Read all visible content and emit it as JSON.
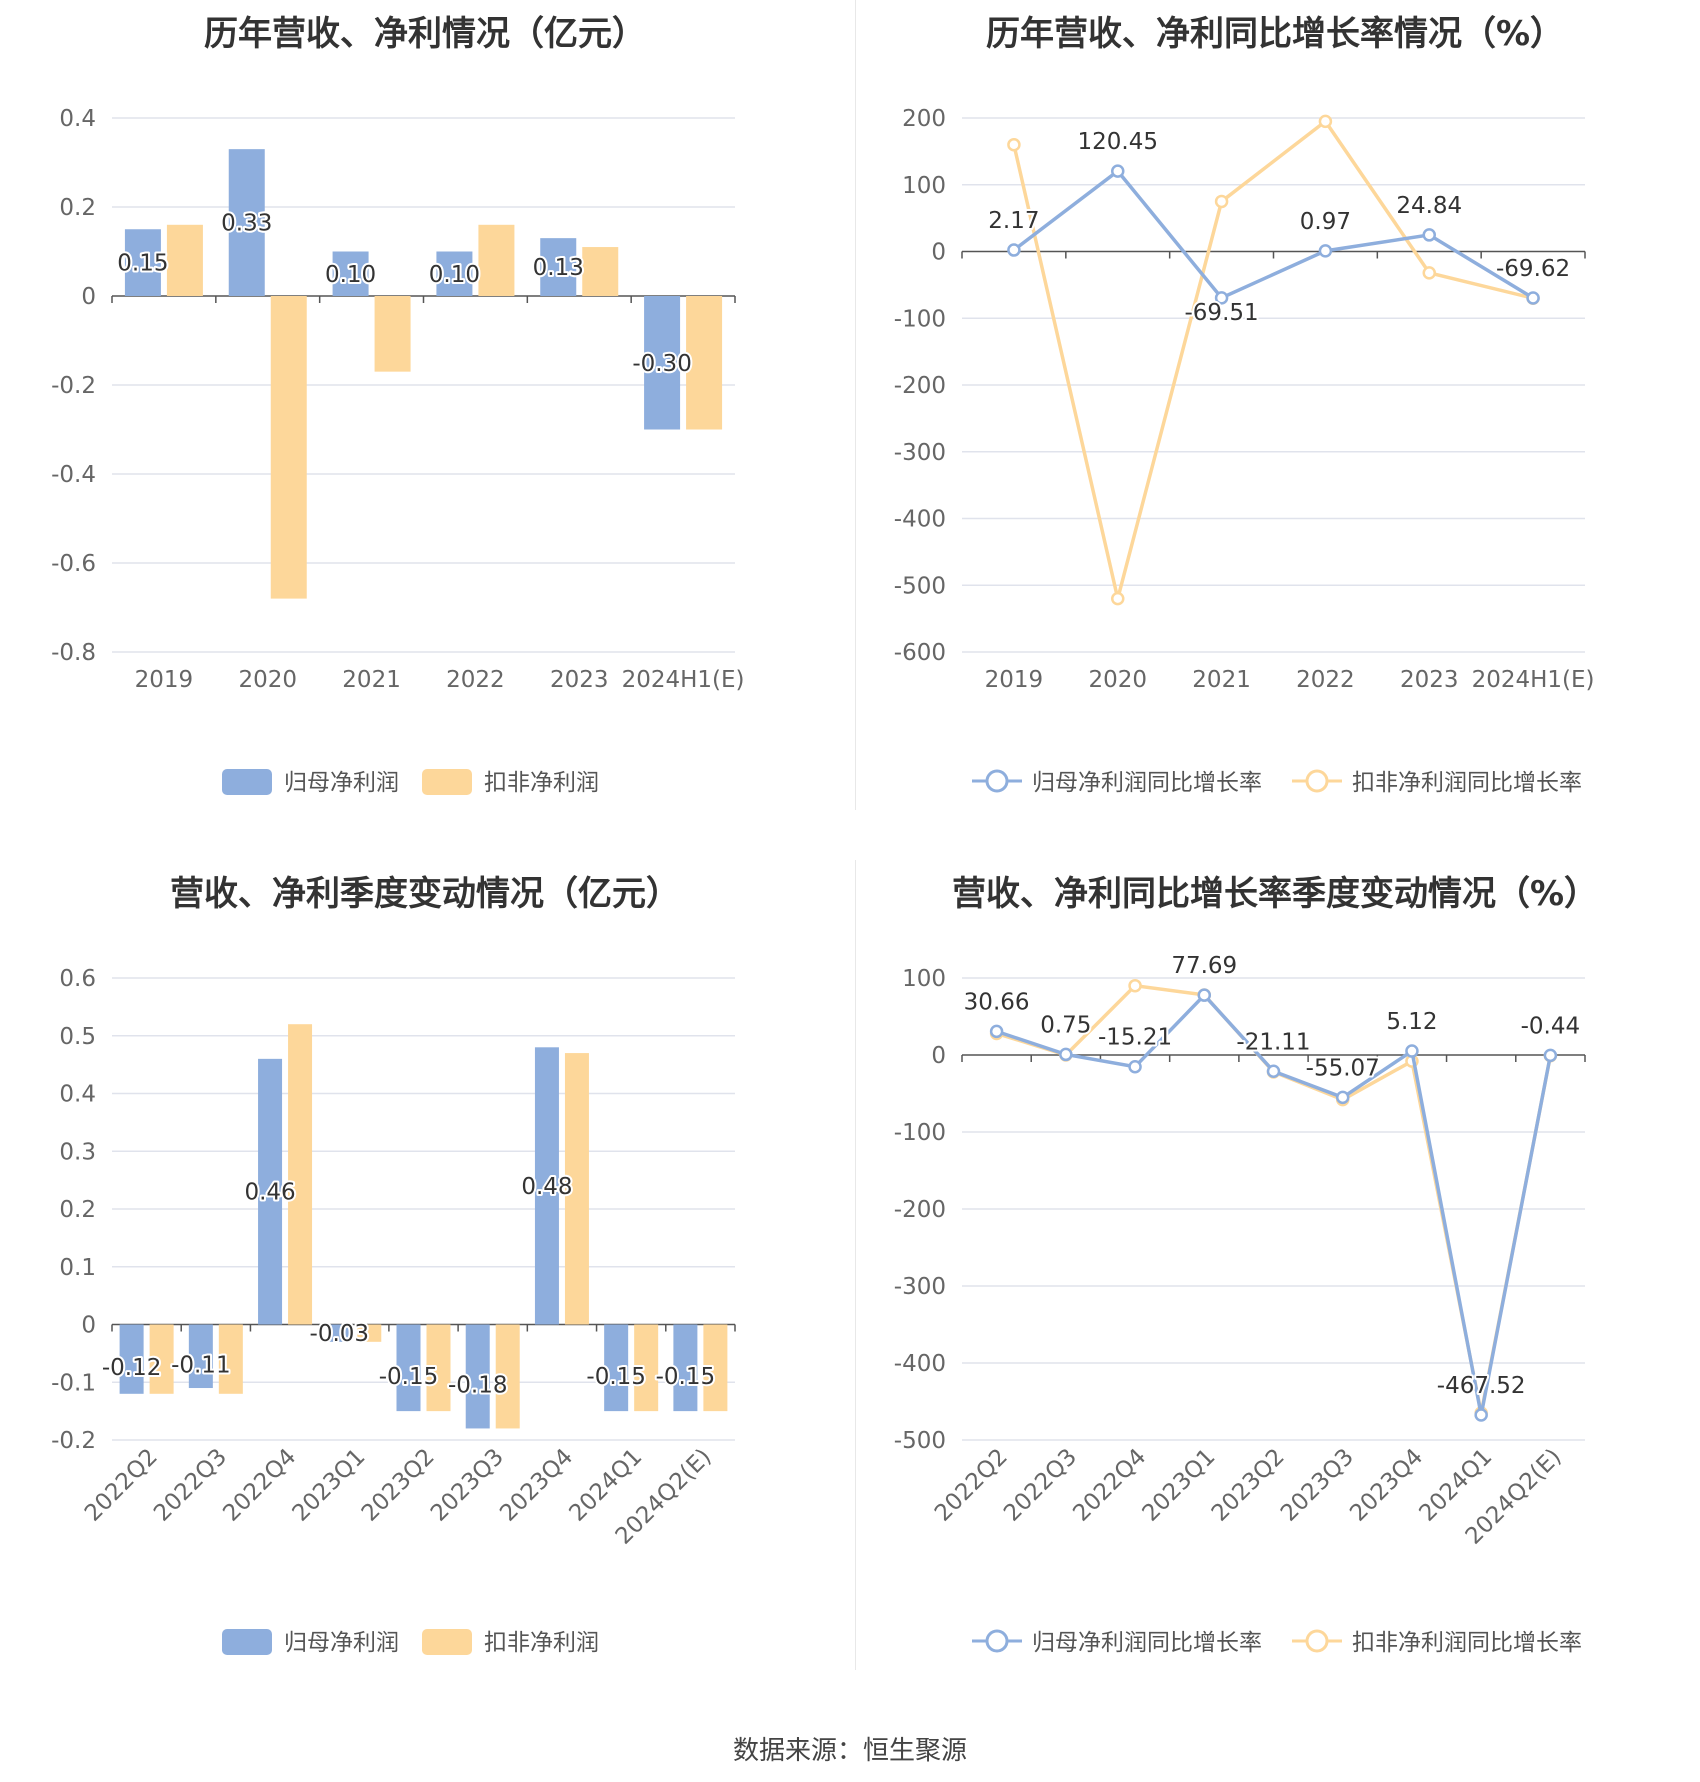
{
  "colors": {
    "net": "#8eaedd",
    "deducted": "#fdd79a",
    "axis": "#666666",
    "grid": "#e0e3ec",
    "label": "#333333"
  },
  "panels": [
    {
      "title": "历年营收、净利情况（亿元）",
      "legend": [
        "归母净利润",
        "扣非净利润"
      ]
    },
    {
      "title": "历年营收、净利同比增长率情况（%）",
      "legend": [
        "归母净利润同比增长率",
        "扣非净利润同比增长率"
      ]
    },
    {
      "title": "营收、净利季度变动情况（亿元）",
      "legend": [
        "归母净利润",
        "扣非净利润"
      ]
    },
    {
      "title": "营收、净利同比增长率季度变动情况（%）",
      "legend": [
        "归母净利润同比增长率",
        "扣非净利润同比增长率"
      ]
    }
  ],
  "footer": "数据来源：恒生聚源",
  "chart_data": [
    {
      "type": "bar",
      "title": "历年营收、净利情况（亿元）",
      "categories": [
        "2019",
        "2020",
        "2021",
        "2022",
        "2023",
        "2024H1(E)"
      ],
      "series": [
        {
          "name": "归母净利润",
          "values": [
            0.15,
            0.33,
            0.1,
            0.1,
            0.13,
            -0.3
          ],
          "labels": [
            "0.15",
            "0.33",
            "0.10",
            "0.10",
            "0.13",
            "-0.30"
          ]
        },
        {
          "name": "扣非净利润",
          "values": [
            0.16,
            -0.68,
            -0.17,
            0.16,
            0.11,
            -0.3
          ]
        }
      ],
      "ylim": [
        -0.8,
        0.4
      ],
      "yticks": [
        "0.4",
        "0.2",
        "0",
        "-0.2",
        "-0.4",
        "-0.6",
        "-0.8"
      ],
      "ytick_values": [
        0.4,
        0.2,
        0,
        -0.2,
        -0.4,
        -0.6,
        -0.8
      ],
      "grid": true,
      "legend_position": "bottom"
    },
    {
      "type": "line",
      "title": "历年营收、净利同比增长率情况（%）",
      "categories": [
        "2019",
        "2020",
        "2021",
        "2022",
        "2023",
        "2024H1(E)"
      ],
      "series": [
        {
          "name": "归母净利润同比增长率",
          "values": [
            2.17,
            120.45,
            -69.51,
            0.97,
            24.84,
            -69.62
          ],
          "labels": [
            "2.17",
            "120.45",
            "-69.51",
            "0.97",
            "24.84",
            "-69.62"
          ]
        },
        {
          "name": "扣非净利润同比增长率",
          "values": [
            160,
            -520,
            75,
            195,
            -32,
            -70
          ]
        }
      ],
      "ylim": [
        -600,
        200
      ],
      "yticks": [
        "200",
        "100",
        "0",
        "-100",
        "-200",
        "-300",
        "-400",
        "-500",
        "-600"
      ],
      "ytick_values": [
        200,
        100,
        0,
        -100,
        -200,
        -300,
        -400,
        -500,
        -600
      ],
      "grid": true,
      "legend_position": "bottom"
    },
    {
      "type": "bar",
      "title": "营收、净利季度变动情况（亿元）",
      "categories": [
        "2022Q2",
        "2022Q3",
        "2022Q4",
        "2023Q1",
        "2023Q2",
        "2023Q3",
        "2023Q4",
        "2024Q1",
        "2024Q2(E)"
      ],
      "series": [
        {
          "name": "归母净利润",
          "values": [
            -0.12,
            -0.11,
            0.46,
            -0.03,
            -0.15,
            -0.18,
            0.48,
            -0.15,
            -0.15
          ],
          "labels": [
            "-0.12",
            "-0.11",
            "0.46",
            "-0.03",
            "-0.15",
            "-0.18",
            "0.48",
            "-0.15",
            "-0.15"
          ]
        },
        {
          "name": "扣非净利润",
          "values": [
            -0.12,
            -0.12,
            0.52,
            -0.03,
            -0.15,
            -0.18,
            0.47,
            -0.15,
            -0.15
          ]
        }
      ],
      "ylim": [
        -0.2,
        0.6
      ],
      "yticks": [
        "0.6",
        "0.5",
        "0.4",
        "0.3",
        "0.2",
        "0.1",
        "0",
        "-0.1",
        "-0.2"
      ],
      "ytick_values": [
        0.6,
        0.5,
        0.4,
        0.3,
        0.2,
        0.1,
        0,
        -0.1,
        -0.2
      ],
      "grid": true,
      "legend_position": "bottom"
    },
    {
      "type": "line",
      "title": "营收、净利同比增长率季度变动情况（%）",
      "categories": [
        "2022Q2",
        "2022Q3",
        "2022Q4",
        "2023Q1",
        "2023Q2",
        "2023Q3",
        "2023Q4",
        "2024Q1",
        "2024Q2(E)"
      ],
      "series": [
        {
          "name": "归母净利润同比增长率",
          "values": [
            30.66,
            0.75,
            -15.21,
            77.69,
            -21.11,
            -55.07,
            5.12,
            -467.52,
            -0.44
          ],
          "labels": [
            "30.66",
            "0.75",
            "-15.21",
            "77.69",
            "-21.11",
            "-55.07",
            "5.12",
            "-467.52",
            "-0.44"
          ]
        },
        {
          "name": "扣非净利润同比增长率",
          "values": [
            28,
            0,
            90,
            78,
            -22,
            -58,
            -8,
            -465,
            -1
          ]
        }
      ],
      "ylim": [
        -500,
        100
      ],
      "yticks": [
        "100",
        "0",
        "-100",
        "-200",
        "-300",
        "-400",
        "-500"
      ],
      "ytick_values": [
        100,
        0,
        -100,
        -200,
        -300,
        -400,
        -500
      ],
      "grid": true,
      "legend_position": "bottom"
    }
  ]
}
